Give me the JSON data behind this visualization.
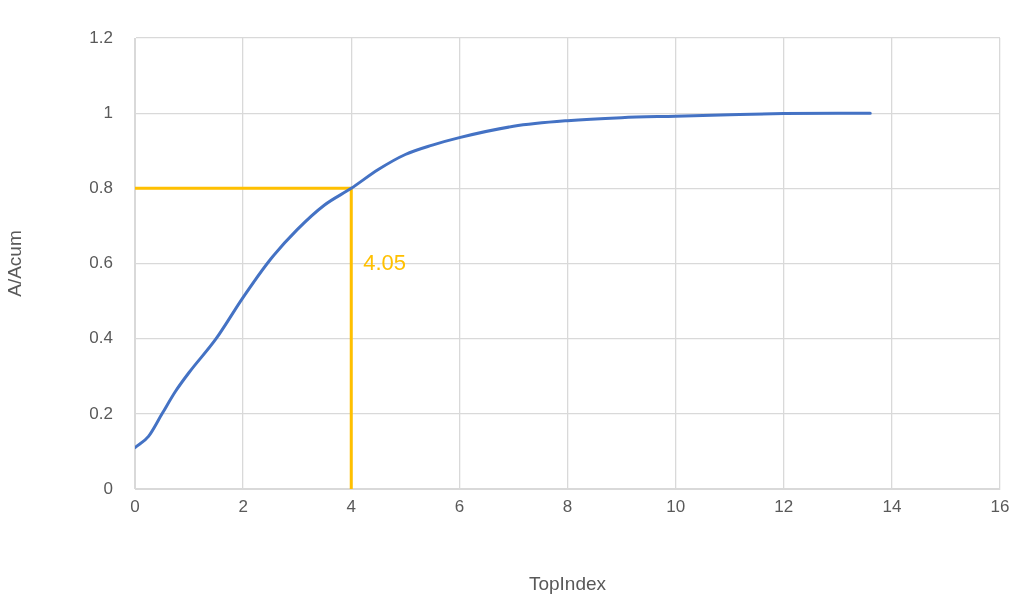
{
  "chart_data": {
    "type": "line",
    "xlabel": "TopIndex",
    "ylabel": "A/Acum",
    "xlim": [
      0,
      16
    ],
    "xticks": [
      0,
      2,
      4,
      6,
      8,
      10,
      12,
      14,
      16
    ],
    "ylim": [
      0,
      1.2
    ],
    "yticks": [
      0,
      0.2,
      0.4,
      0.6,
      0.8,
      1,
      1.2
    ],
    "grid": true,
    "legend": false,
    "marker": "none",
    "line_style": "solid",
    "series": [
      {
        "color": "#4472c4",
        "x": [
          0,
          0.25,
          0.5,
          0.75,
          1,
          1.5,
          2,
          2.5,
          3,
          3.5,
          4,
          4.5,
          5,
          5.5,
          6,
          7,
          8,
          9,
          10,
          11,
          12,
          13,
          13.6
        ],
        "values": [
          0.11,
          0.14,
          0.2,
          0.26,
          0.31,
          0.4,
          0.51,
          0.61,
          0.69,
          0.755,
          0.8,
          0.85,
          0.89,
          0.915,
          0.935,
          0.965,
          0.98,
          0.988,
          0.992,
          0.996,
          0.999,
          1,
          1
        ]
      },
      {
        "color": "#ffc000",
        "x": [
          0,
          4,
          4
        ],
        "values": [
          0.8,
          0.8,
          0
        ]
      }
    ],
    "annotations": [
      {
        "text": "4.05",
        "x": 4,
        "y": 0.6
      }
    ]
  }
}
